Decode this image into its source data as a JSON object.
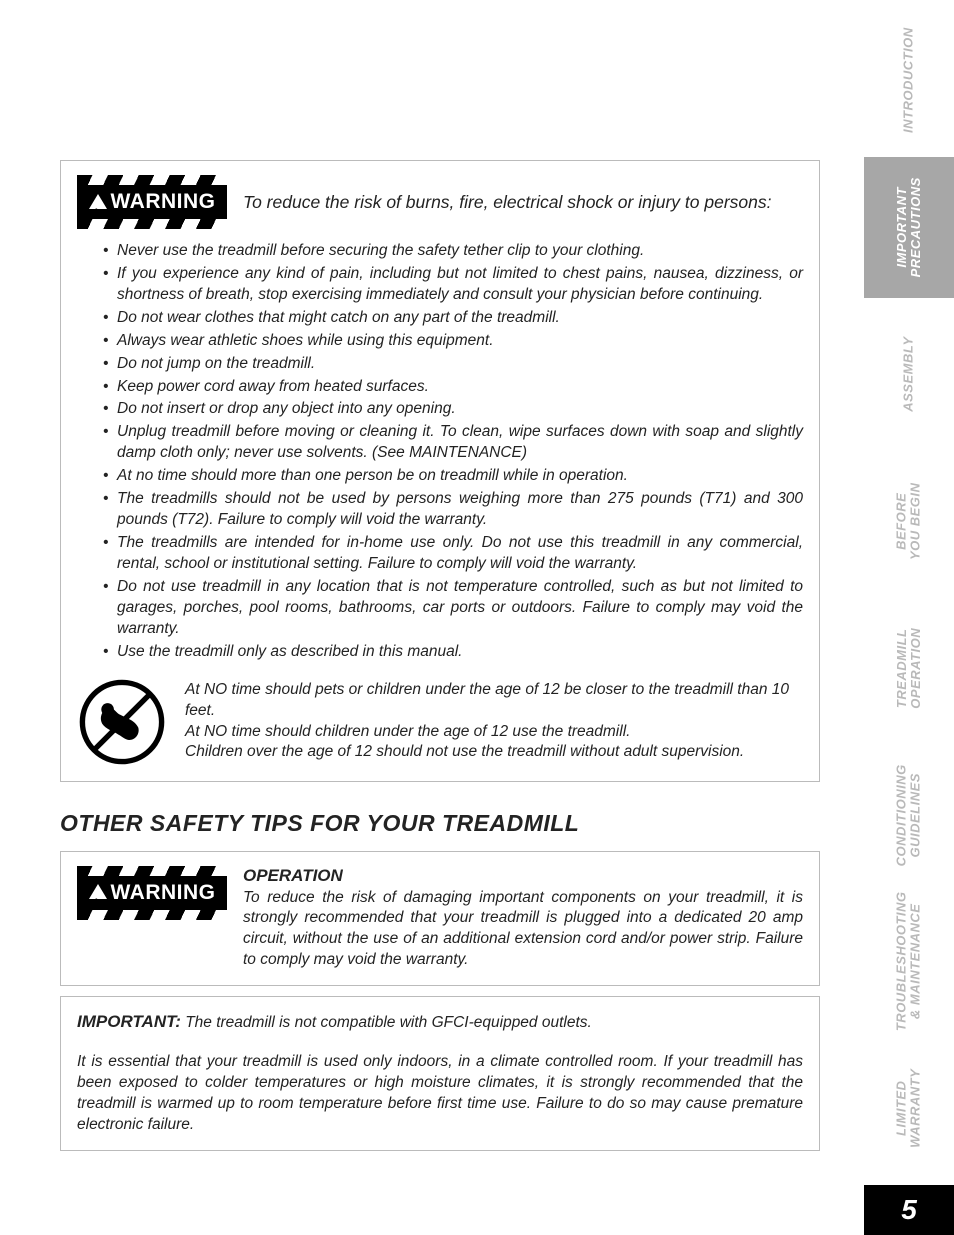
{
  "warning_label": "WARNING",
  "box1": {
    "intro": "To reduce the risk of burns, fire, electrical shock or injury to persons:",
    "bullets": [
      "Never use the treadmill before securing the safety tether clip to your clothing.",
      "If you experience any kind of pain, including but not limited to chest pains, nausea, dizziness, or shortness of breath, stop exercising immediately and consult your physician before continuing.",
      "Do not wear clothes that might catch on any part of the treadmill.",
      "Always wear athletic shoes while using this equipment.",
      "Do not jump on the treadmill.",
      "Keep power cord away from heated surfaces.",
      "Do not insert or drop any object into any opening.",
      "Unplug treadmill before moving or cleaning it.  To clean, wipe surfaces down with soap and slightly damp cloth only; never use solvents. (See MAINTENANCE)",
      "At no time should more than one person be on treadmill while in operation.",
      "The treadmills should not be used by persons weighing more than 275 pounds (T71) and 300 pounds (T72). Failure to comply will void the warranty.",
      "The treadmills are intended for in-home use only. Do not use this treadmill in any commercial, rental, school or institutional setting. Failure to comply will void the warranty.",
      "Do not use treadmill in any location that is not temperature controlled, such as but not limited to garages, porches, pool rooms, bathrooms, car ports or outdoors. Failure to comply may void the warranty.",
      "Use the treadmill only as described in this manual."
    ],
    "child1": "At NO time should pets or children under the age of 12 be closer to the treadmill than 10 feet.",
    "child2": "At NO time should children under the age of 12 use the treadmill.",
    "child3": "Children over the age of 12 should not use the treadmill without adult supervision."
  },
  "section_title": "OTHER SAFETY TIPS FOR YOUR TREADMILL",
  "operation": {
    "heading": "OPERATION",
    "body": "To reduce the risk of damaging important components on your treadmill, it is strongly recommended that your treadmill is plugged into a dedicated 20 amp circuit, without the use of an additional extension cord and/or power strip. Failure to comply may void the warranty."
  },
  "important": {
    "label": "IMPORTANT:",
    "line1": " The treadmill is not compatible with GFCI-equipped outlets.",
    "body": "It is essential that your treadmill is used only indoors, in a climate controlled room. If your treadmill has been exposed to colder temperatures or high moisture climates, it is strongly recommended that the treadmill is warmed up to room temperature before first time use. Failure to do so may cause premature electronic failure."
  },
  "tabs": [
    {
      "label": "INTRODUCTION",
      "active": false
    },
    {
      "label": "IMPORTANT<br>PRECAUTIONS",
      "active": true
    },
    {
      "label": "ASSEMBLY",
      "active": false
    },
    {
      "label": "BEFORE<br>YOU BEGIN",
      "active": false
    },
    {
      "label": "TREADMILL<br>OPERATION",
      "active": false
    },
    {
      "label": "CONDITIONING<br>GUIDELINES",
      "active": false
    },
    {
      "label": "TROUBLESHOOTING<br>& MAINTENANCE",
      "active": false
    },
    {
      "label": "LIMITED<br>WARRANTY",
      "active": false
    }
  ],
  "page_number": "5"
}
